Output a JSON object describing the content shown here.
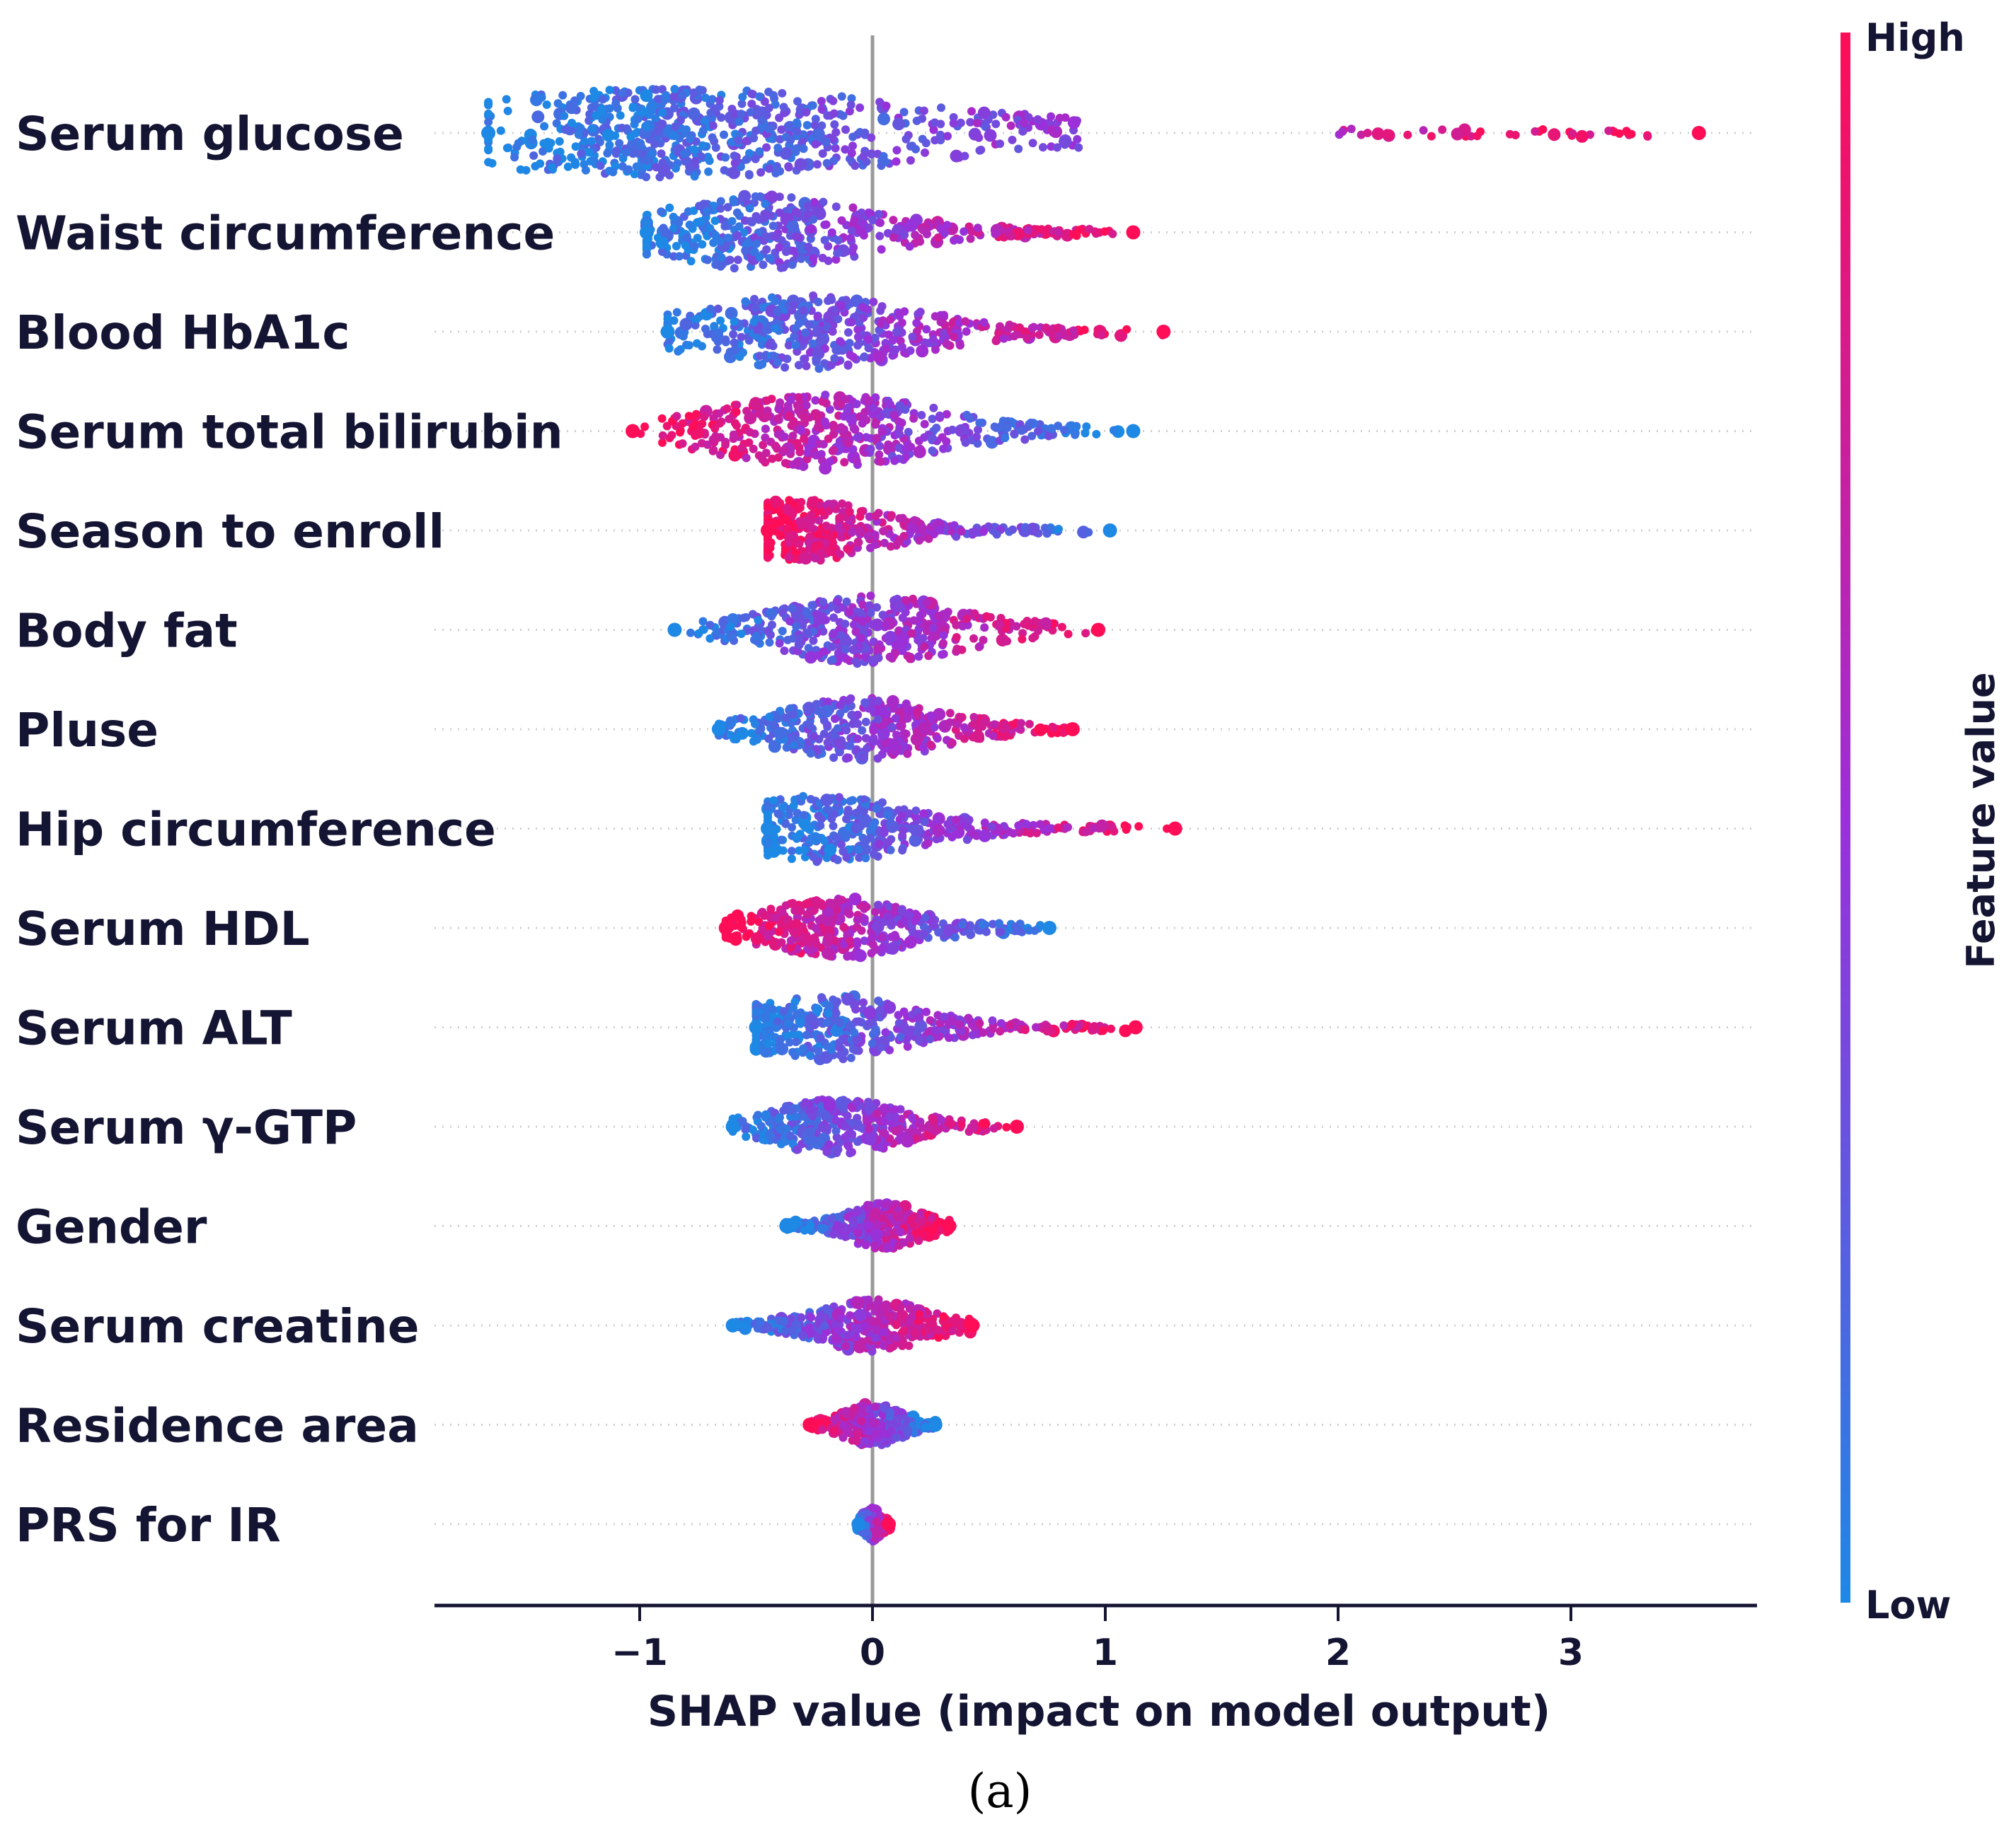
{
  "chart_data": {
    "type": "scatter",
    "subtype": "shap-beeswarm",
    "xlabel": "SHAP value (impact on model output)",
    "xticks": [
      "−1",
      "0",
      "1",
      "2",
      "3"
    ],
    "xtick_values": [
      -1,
      0,
      1,
      2,
      3
    ],
    "xlim": [
      -1.88,
      3.8
    ],
    "colorbar": {
      "label": "Feature value",
      "high_label": "High",
      "low_label": "Low",
      "low_color": "#1e88e5",
      "mid_color": "#9b2fd9",
      "high_color": "#ff0d57"
    },
    "caption": "(a)",
    "features": [
      {
        "name": "Serum glucose",
        "min": -1.65,
        "max": 3.55,
        "peak": -0.85,
        "bulk": [
          -1.3,
          0.9
        ],
        "direction": 1,
        "tail": [
          2.0,
          3.35
        ]
      },
      {
        "name": "Waist circumference",
        "min": -0.97,
        "max": 1.12,
        "peak": -0.5,
        "bulk": [
          -0.75,
          1.0
        ],
        "direction": 1,
        "tail": []
      },
      {
        "name": "Blood HbA1c",
        "min": -0.88,
        "max": 1.25,
        "peak": -0.3,
        "bulk": [
          -0.6,
          1.0
        ],
        "direction": 1,
        "tail": []
      },
      {
        "name": "Serum total bilirubin",
        "min": -1.03,
        "max": 1.12,
        "peak": -0.2,
        "bulk": [
          -0.9,
          0.9
        ],
        "direction": -1,
        "tail": []
      },
      {
        "name": "Season to enroll",
        "min": -0.45,
        "max": 1.02,
        "peak": -0.3,
        "bulk": [
          -0.45,
          0.8
        ],
        "direction": -1,
        "tail": []
      },
      {
        "name": "Body fat",
        "min": -0.85,
        "max": 0.97,
        "peak": 0.0,
        "bulk": [
          -0.75,
          0.8
        ],
        "direction": 1,
        "tail": []
      },
      {
        "name": "Pluse",
        "min": -0.66,
        "max": 0.86,
        "peak": -0.05,
        "bulk": [
          -0.66,
          0.86
        ],
        "direction": 1,
        "tail": []
      },
      {
        "name": "Hip circumference",
        "min": -0.45,
        "max": 1.3,
        "peak": -0.2,
        "bulk": [
          -0.45,
          1.1
        ],
        "direction": 1,
        "tail": []
      },
      {
        "name": "Serum HDL",
        "min": -0.63,
        "max": 0.76,
        "peak": -0.15,
        "bulk": [
          -0.63,
          0.7
        ],
        "direction": -1,
        "tail": []
      },
      {
        "name": "Serum ALT",
        "min": -0.5,
        "max": 1.13,
        "peak": -0.2,
        "bulk": [
          -0.5,
          1.0
        ],
        "direction": 1,
        "tail": []
      },
      {
        "name": "Serum γ-GTP",
        "min": -0.6,
        "max": 0.62,
        "peak": -0.15,
        "bulk": [
          -0.6,
          0.5
        ],
        "direction": 1,
        "tail": []
      },
      {
        "name": "Gender",
        "min": -0.37,
        "max": 0.33,
        "peak": 0.05,
        "bulk": [
          -0.37,
          0.33
        ],
        "direction": 1,
        "tail": []
      },
      {
        "name": "Serum creatine",
        "min": -0.6,
        "max": 0.43,
        "peak": 0.0,
        "bulk": [
          -0.6,
          0.4
        ],
        "direction": 1,
        "tail": []
      },
      {
        "name": "Residence area",
        "min": -0.27,
        "max": 0.27,
        "peak": 0.0,
        "bulk": [
          -0.27,
          0.27
        ],
        "direction": -1,
        "tail": []
      },
      {
        "name": "PRS for IR",
        "min": -0.06,
        "max": 0.07,
        "peak": 0.0,
        "bulk": [
          -0.06,
          0.07
        ],
        "direction": 1,
        "tail": []
      }
    ]
  }
}
